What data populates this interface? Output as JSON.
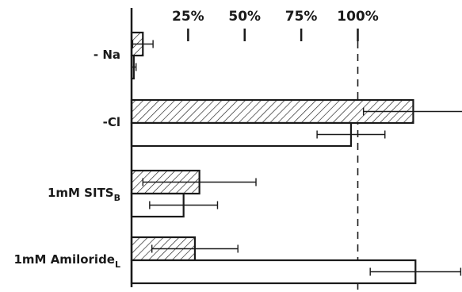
{
  "chart_data": {
    "type": "bar",
    "orientation": "horizontal",
    "title": "",
    "xlabel": "",
    "ylabel": "",
    "xlim": [
      0,
      125
    ],
    "x_ticks": [
      {
        "value": 25,
        "label": "25%"
      },
      {
        "value": 50,
        "label": "50%"
      },
      {
        "value": 75,
        "label": "75%"
      },
      {
        "value": 100,
        "label": "100%"
      }
    ],
    "reference_line": {
      "value": 100,
      "style": "dashed"
    },
    "categories": [
      {
        "label": "- Na",
        "subscript": ""
      },
      {
        "label": "-Cl",
        "subscript": ""
      },
      {
        "label": "1mM SITS",
        "subscript": "B"
      },
      {
        "label": "1mM Amiloride",
        "subscript": "L"
      }
    ],
    "series": [
      {
        "fill": "hatched",
        "values": [
          5,
          124.5,
          30,
          28
        ],
        "errors": [
          4.5,
          22,
          25,
          19
        ]
      },
      {
        "fill": "open",
        "values": [
          1,
          97,
          23,
          125.5
        ],
        "errors": [
          1,
          15,
          15,
          20
        ]
      }
    ],
    "grid": false,
    "legend": "none"
  }
}
